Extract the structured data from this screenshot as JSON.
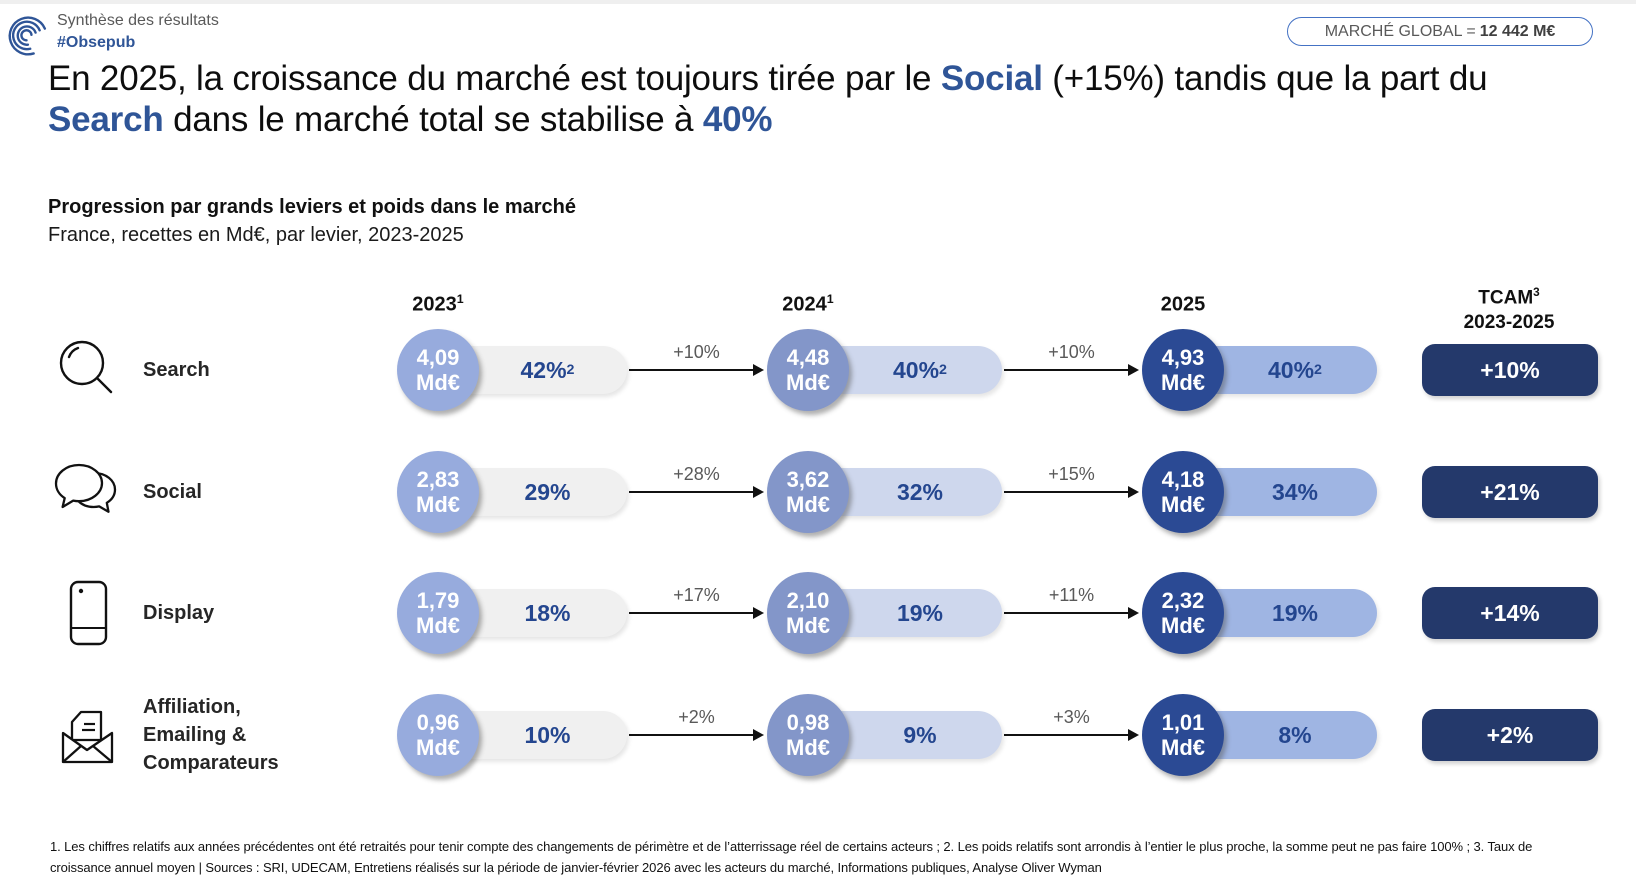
{
  "header": {
    "logo_label": "Synthèse des résultats",
    "logo_hashtag": "#Obsepub",
    "market_badge": {
      "label": "MARCHÉ GLOBAL =",
      "value": "12 442 M€"
    }
  },
  "title": {
    "part1": "En 2025, la croissance du marché est toujours tirée par le ",
    "bold1": "Social",
    "part2": " (+15%) tandis que la part du ",
    "bold2": "Search",
    "part3": " dans le marché total se stabilise à ",
    "bold3": "40%"
  },
  "section": {
    "heading": "Progression par grands leviers et poids dans le marché",
    "subheading": "France, recettes en Md€, par levier, 2023-2025"
  },
  "columns": {
    "years": [
      {
        "label": "2023",
        "sup": "1"
      },
      {
        "label": "2024",
        "sup": "1"
      },
      {
        "label": "2025",
        "sup": ""
      }
    ],
    "tcam": {
      "line1": "TCAM",
      "sup": "3",
      "line2": "2023-2025"
    }
  },
  "chart_data": {
    "type": "table",
    "title": "Progression par grands leviers et poids dans le marché",
    "subtitle": "France, recettes en Md€, par levier, 2023-2025",
    "unit": "Md€",
    "unit_label": "Md€",
    "years": [
      "2023",
      "2024",
      "2025"
    ],
    "market_global": "12 442 M€",
    "rows": [
      {
        "label": "Search",
        "icon": "search-icon",
        "values": [
          "4,09",
          "4,48",
          "4,93"
        ],
        "values_numeric": [
          4.09,
          4.48,
          4.93
        ],
        "share": [
          {
            "text": "42%",
            "sup": "2"
          },
          {
            "text": "40%",
            "sup": "2"
          },
          {
            "text": "40%",
            "sup": "2"
          }
        ],
        "growth": [
          "+10%",
          "+10%"
        ],
        "tcam": "+10%"
      },
      {
        "label": "Social",
        "icon": "social-icon",
        "values": [
          "2,83",
          "3,62",
          "4,18"
        ],
        "values_numeric": [
          2.83,
          3.62,
          4.18
        ],
        "share": [
          {
            "text": "29%",
            "sup": ""
          },
          {
            "text": "32%",
            "sup": ""
          },
          {
            "text": "34%",
            "sup": ""
          }
        ],
        "growth": [
          "+28%",
          "+15%"
        ],
        "tcam": "+21%"
      },
      {
        "label": "Display",
        "icon": "display-icon",
        "values": [
          "1,79",
          "2,10",
          "2,32"
        ],
        "values_numeric": [
          1.79,
          2.1,
          2.32
        ],
        "share": [
          {
            "text": "18%",
            "sup": ""
          },
          {
            "text": "19%",
            "sup": ""
          },
          {
            "text": "19%",
            "sup": ""
          }
        ],
        "growth": [
          "+17%",
          "+11%"
        ],
        "tcam": "+14%"
      },
      {
        "label": "Affiliation, Emailing & Comparateurs",
        "icon": "affiliation-icon",
        "values": [
          "0,96",
          "0,98",
          "1,01"
        ],
        "values_numeric": [
          0.96,
          0.98,
          1.01
        ],
        "share": [
          {
            "text": "10%",
            "sup": ""
          },
          {
            "text": "9%",
            "sup": ""
          },
          {
            "text": "8%",
            "sup": ""
          }
        ],
        "growth": [
          "+2%",
          "+3%"
        ],
        "tcam": "+2%"
      }
    ]
  },
  "colors": {
    "accent_blue": "#2F5597",
    "circle_2023": "#97ABDD",
    "circle_2024": "#8396C9",
    "circle_2025": "#2B4A94",
    "pill_2023": "#F0F0F0",
    "pill_2024": "#CED7ED",
    "pill_2025": "#9FB5E3",
    "pill_text": "#24468F",
    "tcam_badge": "#24396B",
    "growth_text": "#595959"
  },
  "footnote": "1. Les chiffres relatifs aux années précédentes ont été retraités pour tenir compte des changements de périmètre et de l’atterrissage réel de certains acteurs ; 2. Les poids relatifs sont arrondis à l’entier le plus proche, la somme peut ne pas faire 100% ; 3. Taux de croissance annuel moyen | Sources : SRI, UDECAM, Entretiens réalisés sur la période de janvier-février 2026 avec les acteurs du marché, Informations publiques, Analyse Oliver Wyman"
}
